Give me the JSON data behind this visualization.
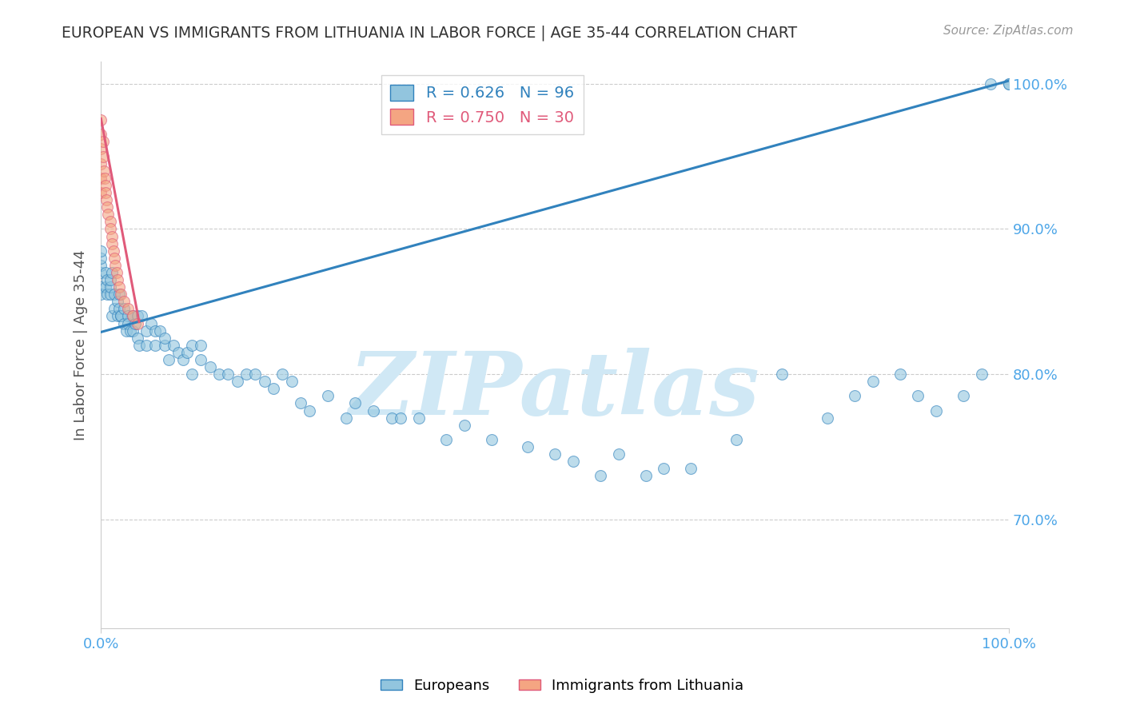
{
  "title": "EUROPEAN VS IMMIGRANTS FROM LITHUANIA IN LABOR FORCE | AGE 35-44 CORRELATION CHART",
  "source": "Source: ZipAtlas.com",
  "ylabel": "In Labor Force | Age 35-44",
  "xmin": 0.0,
  "xmax": 1.0,
  "ymin": 0.625,
  "ymax": 1.015,
  "yticks": [
    0.7,
    0.8,
    0.9,
    1.0
  ],
  "ytick_labels": [
    "70.0%",
    "80.0%",
    "90.0%",
    "100.0%"
  ],
  "xtick_labels": [
    "0.0%",
    "100.0%"
  ],
  "r_european": 0.626,
  "n_european": 96,
  "r_lithuania": 0.75,
  "n_lithuania": 30,
  "blue_color": "#92c5de",
  "pink_color": "#f4a582",
  "blue_line_color": "#3182bd",
  "pink_line_color": "#e05a7a",
  "marker_size": 100,
  "watermark_text": "ZIPatlas",
  "watermark_color": "#d0e8f5",
  "background_color": "#ffffff",
  "grid_color": "#cccccc",
  "title_color": "#333333",
  "tick_label_color": "#4da6e8",
  "legend_label_european": "Europeans",
  "legend_label_lithuania": "Immigrants from Lithuania",
  "eu_x": [
    0.0,
    0.0,
    0.0,
    0.0,
    0.0,
    0.0,
    0.005,
    0.005,
    0.007,
    0.007,
    0.01,
    0.01,
    0.01,
    0.012,
    0.012,
    0.015,
    0.015,
    0.018,
    0.018,
    0.02,
    0.02,
    0.022,
    0.022,
    0.025,
    0.025,
    0.028,
    0.03,
    0.03,
    0.032,
    0.035,
    0.035,
    0.038,
    0.04,
    0.04,
    0.042,
    0.045,
    0.05,
    0.05,
    0.055,
    0.06,
    0.06,
    0.065,
    0.07,
    0.07,
    0.075,
    0.08,
    0.085,
    0.09,
    0.095,
    0.1,
    0.1,
    0.11,
    0.11,
    0.12,
    0.13,
    0.14,
    0.15,
    0.16,
    0.17,
    0.18,
    0.19,
    0.2,
    0.21,
    0.22,
    0.23,
    0.25,
    0.27,
    0.28,
    0.3,
    0.32,
    0.33,
    0.35,
    0.38,
    0.4,
    0.43,
    0.47,
    0.5,
    0.52,
    0.55,
    0.57,
    0.6,
    0.62,
    0.65,
    0.7,
    0.75,
    0.8,
    0.83,
    0.85,
    0.88,
    0.9,
    0.92,
    0.95,
    0.97,
    0.98,
    1.0,
    1.0
  ],
  "eu_y": [
    0.86,
    0.87,
    0.875,
    0.88,
    0.885,
    0.855,
    0.86,
    0.87,
    0.855,
    0.865,
    0.855,
    0.86,
    0.865,
    0.84,
    0.87,
    0.855,
    0.845,
    0.85,
    0.84,
    0.845,
    0.855,
    0.84,
    0.84,
    0.835,
    0.845,
    0.83,
    0.84,
    0.835,
    0.83,
    0.83,
    0.84,
    0.835,
    0.825,
    0.84,
    0.82,
    0.84,
    0.82,
    0.83,
    0.835,
    0.82,
    0.83,
    0.83,
    0.82,
    0.825,
    0.81,
    0.82,
    0.815,
    0.81,
    0.815,
    0.8,
    0.82,
    0.81,
    0.82,
    0.805,
    0.8,
    0.8,
    0.795,
    0.8,
    0.8,
    0.795,
    0.79,
    0.8,
    0.795,
    0.78,
    0.775,
    0.785,
    0.77,
    0.78,
    0.775,
    0.77,
    0.77,
    0.77,
    0.755,
    0.765,
    0.755,
    0.75,
    0.745,
    0.74,
    0.73,
    0.745,
    0.73,
    0.735,
    0.735,
    0.755,
    0.8,
    0.77,
    0.785,
    0.795,
    0.8,
    0.785,
    0.775,
    0.785,
    0.8,
    1.0,
    1.0,
    1.0
  ],
  "lt_x": [
    0.0,
    0.0,
    0.0,
    0.0,
    0.0,
    0.0,
    0.002,
    0.002,
    0.003,
    0.004,
    0.005,
    0.005,
    0.006,
    0.007,
    0.008,
    0.01,
    0.01,
    0.012,
    0.012,
    0.014,
    0.015,
    0.016,
    0.017,
    0.018,
    0.02,
    0.022,
    0.025,
    0.03,
    0.035,
    0.04
  ],
  "lt_y": [
    0.975,
    0.965,
    0.955,
    0.945,
    0.935,
    0.925,
    0.96,
    0.95,
    0.94,
    0.935,
    0.93,
    0.925,
    0.92,
    0.915,
    0.91,
    0.905,
    0.9,
    0.895,
    0.89,
    0.885,
    0.88,
    0.875,
    0.87,
    0.865,
    0.86,
    0.855,
    0.85,
    0.845,
    0.84,
    0.835
  ],
  "eu_line_x": [
    0.0,
    1.0
  ],
  "eu_line_y": [
    0.829,
    1.002
  ],
  "lt_line_x": [
    0.0,
    0.042
  ],
  "lt_line_y": [
    0.976,
    0.836
  ]
}
